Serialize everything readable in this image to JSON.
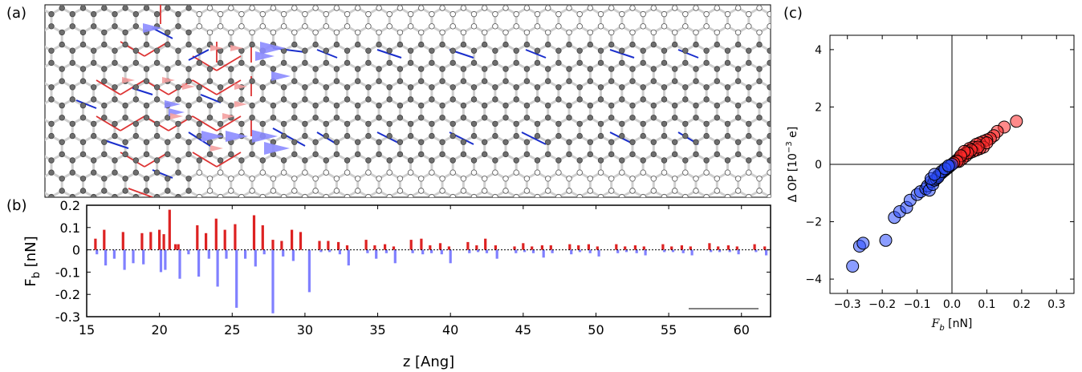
{
  "panel_labels": {
    "a": "(a)",
    "b": "(b)",
    "c": "(c)"
  },
  "colors": {
    "positive": "#dd2222",
    "negative": "#8080ff",
    "red_bond": "#dd3333",
    "blue_bond": "#1a2ecc",
    "grey_bond": "#cfcfcf",
    "atom": "#6e6e6e",
    "arrow": "#8c8cff",
    "arrow_small": "#f4a0a0",
    "red_points": "#ff2a2a",
    "blue_points": "#2b4dff"
  },
  "chart_data": [
    {
      "id": "a",
      "type": "other",
      "title": "",
      "note": "Graphene lattice structure with bond coloring and force arrows"
    },
    {
      "id": "b",
      "type": "bar",
      "xlabel": "z [Ang]",
      "ylabel": "F_b [nN]",
      "ylabel_main": "F",
      "ylabel_sub": "b",
      "ylabel_unit": " [nN]",
      "xlim": [
        15,
        62
      ],
      "ylim": [
        -0.3,
        0.2
      ],
      "xticks": [
        15,
        20,
        25,
        30,
        35,
        40,
        45,
        50,
        55,
        60
      ],
      "yticks": [
        0.2,
        0.1,
        0,
        -0.1,
        -0.2,
        -0.3
      ],
      "ytick_labels": [
        "0.2",
        "0.1",
        "0",
        "-0.1",
        "-0.2",
        "-0.3"
      ],
      "series": [
        {
          "values": [
            [
              15.6,
              0.05
            ],
            [
              16.2,
              0.09
            ],
            [
              17.5,
              0.08
            ],
            [
              18.8,
              0.075
            ],
            [
              19.4,
              0.08
            ],
            [
              20.0,
              0.09
            ],
            [
              20.3,
              0.07
            ],
            [
              20.7,
              0.18
            ],
            [
              21.1,
              0.025
            ],
            [
              21.3,
              0.025
            ],
            [
              22.6,
              0.11
            ],
            [
              23.2,
              0.075
            ],
            [
              23.9,
              0.14
            ],
            [
              24.5,
              0.09
            ],
            [
              25.2,
              0.115
            ],
            [
              26.5,
              0.155
            ],
            [
              27.1,
              0.11
            ],
            [
              27.8,
              0.045
            ],
            [
              28.4,
              0.04
            ],
            [
              29.1,
              0.09
            ],
            [
              29.7,
              0.08
            ],
            [
              31.0,
              0.04
            ],
            [
              31.6,
              0.04
            ],
            [
              32.3,
              0.035
            ],
            [
              32.9,
              0.02
            ],
            [
              34.2,
              0.045
            ],
            [
              34.8,
              0.02
            ],
            [
              35.5,
              0.025
            ],
            [
              36.1,
              0.015
            ],
            [
              37.3,
              0.045
            ],
            [
              38.0,
              0.05
            ],
            [
              38.6,
              0.02
            ],
            [
              39.3,
              0.03
            ],
            [
              39.9,
              0.015
            ],
            [
              41.2,
              0.035
            ],
            [
              41.8,
              0.02
            ],
            [
              42.4,
              0.05
            ],
            [
              43.1,
              0.02
            ],
            [
              44.4,
              0.015
            ],
            [
              45.0,
              0.03
            ],
            [
              45.6,
              0.015
            ],
            [
              46.3,
              0.02
            ],
            [
              46.9,
              0.02
            ],
            [
              48.2,
              0.025
            ],
            [
              48.8,
              0.02
            ],
            [
              49.5,
              0.025
            ],
            [
              50.1,
              0.015
            ],
            [
              51.4,
              0.025
            ],
            [
              52.0,
              0.015
            ],
            [
              52.7,
              0.02
            ],
            [
              53.3,
              0.015
            ],
            [
              54.6,
              0.025
            ],
            [
              55.2,
              0.015
            ],
            [
              55.9,
              0.02
            ],
            [
              56.5,
              0.015
            ],
            [
              57.8,
              0.03
            ],
            [
              58.4,
              0.015
            ],
            [
              59.1,
              0.02
            ],
            [
              59.7,
              0.015
            ],
            [
              60.9,
              0.025
            ],
            [
              61.6,
              0.015
            ]
          ]
        },
        {
          "values": [
            [
              15.7,
              -0.02
            ],
            [
              16.3,
              -0.07
            ],
            [
              16.9,
              -0.04
            ],
            [
              17.6,
              -0.09
            ],
            [
              18.2,
              -0.06
            ],
            [
              18.9,
              -0.065
            ],
            [
              20.1,
              -0.1
            ],
            [
              20.4,
              -0.09
            ],
            [
              21.4,
              -0.13
            ],
            [
              22.0,
              -0.02
            ],
            [
              22.7,
              -0.12
            ],
            [
              23.4,
              -0.04
            ],
            [
              24.0,
              -0.165
            ],
            [
              24.6,
              -0.04
            ],
            [
              25.3,
              -0.26
            ],
            [
              25.9,
              -0.04
            ],
            [
              26.6,
              -0.075
            ],
            [
              27.2,
              -0.02
            ],
            [
              27.8,
              -0.285
            ],
            [
              28.5,
              -0.03
            ],
            [
              29.2,
              -0.05
            ],
            [
              30.3,
              -0.19
            ],
            [
              31.1,
              -0.01
            ],
            [
              31.7,
              -0.01
            ],
            [
              32.4,
              -0.02
            ],
            [
              33.0,
              -0.07
            ],
            [
              34.3,
              -0.015
            ],
            [
              34.9,
              -0.04
            ],
            [
              35.6,
              -0.015
            ],
            [
              36.2,
              -0.06
            ],
            [
              37.4,
              -0.015
            ],
            [
              38.1,
              -0.02
            ],
            [
              38.7,
              -0.015
            ],
            [
              39.4,
              -0.02
            ],
            [
              40.0,
              -0.06
            ],
            [
              41.3,
              -0.015
            ],
            [
              41.9,
              -0.01
            ],
            [
              42.5,
              -0.015
            ],
            [
              43.2,
              -0.04
            ],
            [
              44.5,
              -0.015
            ],
            [
              45.1,
              -0.01
            ],
            [
              45.7,
              -0.015
            ],
            [
              46.4,
              -0.035
            ],
            [
              47.0,
              -0.015
            ],
            [
              48.3,
              -0.02
            ],
            [
              48.9,
              -0.01
            ],
            [
              49.6,
              -0.015
            ],
            [
              50.2,
              -0.03
            ],
            [
              51.5,
              -0.015
            ],
            [
              52.1,
              -0.01
            ],
            [
              52.8,
              -0.015
            ],
            [
              53.4,
              -0.025
            ],
            [
              54.7,
              -0.01
            ],
            [
              55.3,
              -0.01
            ],
            [
              56.0,
              -0.015
            ],
            [
              56.6,
              -0.025
            ],
            [
              57.9,
              -0.01
            ],
            [
              58.5,
              -0.01
            ],
            [
              59.2,
              -0.01
            ],
            [
              59.8,
              -0.02
            ],
            [
              61.0,
              -0.01
            ],
            [
              61.7,
              -0.025
            ]
          ]
        }
      ]
    },
    {
      "id": "c",
      "type": "scatter",
      "xlabel_main": "F",
      "xlabel_sub": "b",
      "xlabel_unit": " [nN]",
      "ylabel_main": "Δ OP [10",
      "ylabel_sup": "−3",
      "ylabel_unit": " e]",
      "xlim": [
        -0.35,
        0.35
      ],
      "ylim": [
        -4.5,
        4.5
      ],
      "xticks": [
        -0.3,
        -0.2,
        -0.1,
        0.0,
        0.1,
        0.2,
        0.3
      ],
      "xtick_labels": [
        "−0.3",
        "−0.2",
        "−0.1",
        "0.0",
        "0.1",
        "0.2",
        "0.3"
      ],
      "yticks": [
        -4,
        -2,
        0,
        2,
        4
      ],
      "ytick_labels": [
        "−4",
        "−2",
        "0",
        "2",
        "4"
      ],
      "series": [
        {
          "values": [
            [
              0.185,
              1.5
            ],
            [
              0.15,
              1.3
            ],
            [
              0.13,
              1.15
            ],
            [
              0.12,
              1.0
            ],
            [
              0.11,
              0.9
            ],
            [
              0.1,
              0.85
            ],
            [
              0.09,
              0.8
            ],
            [
              0.08,
              0.75
            ],
            [
              0.07,
              0.7
            ],
            [
              0.06,
              0.6
            ],
            [
              0.05,
              0.55
            ],
            [
              0.045,
              0.45
            ],
            [
              0.04,
              0.4
            ],
            [
              0.035,
              0.35
            ],
            [
              0.03,
              0.3
            ],
            [
              0.025,
              0.25
            ],
            [
              0.02,
              0.2
            ],
            [
              0.015,
              0.15
            ],
            [
              0.01,
              0.1
            ],
            [
              0.09,
              0.6
            ],
            [
              0.08,
              0.55
            ],
            [
              0.07,
              0.5
            ],
            [
              0.06,
              0.45
            ],
            [
              0.05,
              0.4
            ],
            [
              0.04,
              0.3
            ],
            [
              0.03,
              0.2
            ],
            [
              0.02,
              0.1
            ],
            [
              0.1,
              0.75
            ],
            [
              0.075,
              0.6
            ],
            [
              0.055,
              0.5
            ],
            [
              0.045,
              0.4
            ],
            [
              0.035,
              0.45
            ],
            [
              0.025,
              0.3
            ],
            [
              0.015,
              0.1
            ],
            [
              0.005,
              0.05
            ]
          ]
        },
        {
          "values": [
            [
              -0.285,
              -3.55
            ],
            [
              -0.265,
              -2.85
            ],
            [
              -0.255,
              -2.75
            ],
            [
              -0.19,
              -2.65
            ],
            [
              -0.165,
              -1.85
            ],
            [
              -0.15,
              -1.65
            ],
            [
              -0.13,
              -1.5
            ],
            [
              -0.12,
              -1.25
            ],
            [
              -0.1,
              -1.05
            ],
            [
              -0.09,
              -0.95
            ],
            [
              -0.075,
              -0.85
            ],
            [
              -0.07,
              -0.75
            ],
            [
              -0.065,
              -0.9
            ],
            [
              -0.06,
              -0.6
            ],
            [
              -0.055,
              -0.7
            ],
            [
              -0.05,
              -0.55
            ],
            [
              -0.045,
              -0.5
            ],
            [
              -0.04,
              -0.4
            ],
            [
              -0.035,
              -0.35
            ],
            [
              -0.03,
              -0.3
            ],
            [
              -0.025,
              -0.25
            ],
            [
              -0.02,
              -0.2
            ],
            [
              -0.015,
              -0.15
            ],
            [
              -0.01,
              -0.1
            ],
            [
              -0.005,
              -0.05
            ],
            [
              0.0,
              0.0
            ],
            [
              -0.04,
              -0.45
            ],
            [
              -0.03,
              -0.25
            ],
            [
              -0.02,
              -0.15
            ],
            [
              -0.01,
              -0.05
            ],
            [
              -0.06,
              -0.5
            ],
            [
              -0.05,
              -0.35
            ]
          ]
        }
      ]
    }
  ]
}
